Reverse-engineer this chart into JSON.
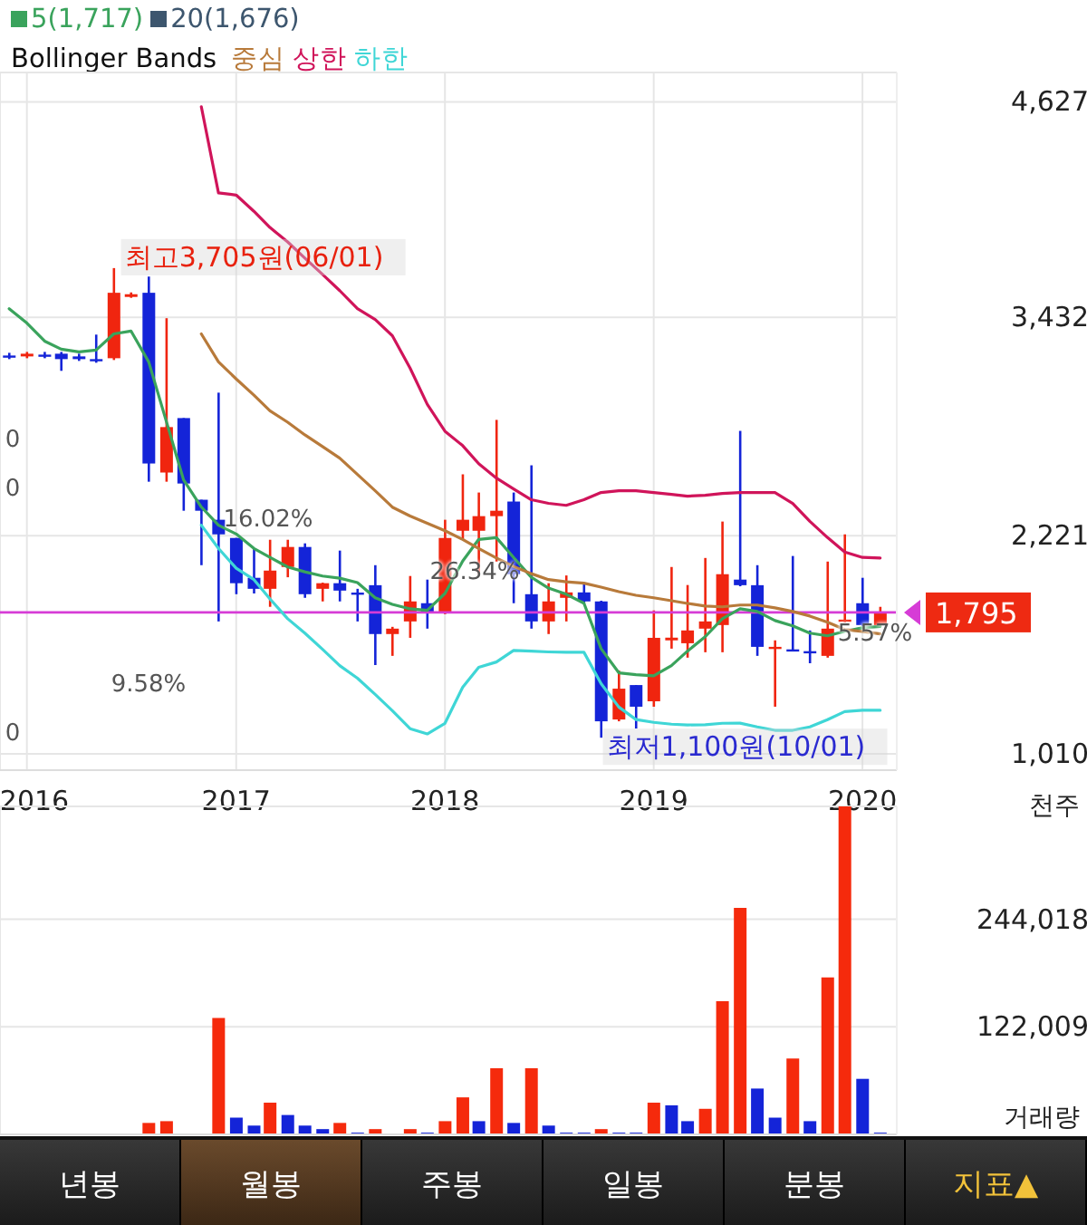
{
  "chart_data": [
    {
      "type": "candlestick",
      "x": [
        "2015-12",
        "2016-01",
        "2016-02",
        "2016-03",
        "2016-04",
        "2016-05",
        "2016-06",
        "2016-07",
        "2016-08",
        "2016-09",
        "2016-10",
        "2016-11",
        "2016-12",
        "2017-01",
        "2017-02",
        "2017-03",
        "2017-04",
        "2017-05",
        "2017-06",
        "2017-07",
        "2017-08",
        "2017-09",
        "2017-10",
        "2017-11",
        "2017-12",
        "2018-01",
        "2018-02",
        "2018-03",
        "2018-04",
        "2018-05",
        "2018-06",
        "2018-07",
        "2018-08",
        "2018-09",
        "2018-10",
        "2018-11",
        "2018-12",
        "2019-01",
        "2019-02",
        "2019-03",
        "2019-04",
        "2019-05",
        "2019-06",
        "2019-07",
        "2019-08",
        "2019-09",
        "2019-10",
        "2019-11",
        "2019-12",
        "2020-01",
        "2020-02"
      ],
      "xlim": [
        "2015-11-15",
        "2020-03-01"
      ],
      "xticks": [
        {
          "value": "2016-01",
          "label": "2016"
        },
        {
          "value": "2017-01",
          "label": "2017"
        },
        {
          "value": "2018-01",
          "label": "2018"
        },
        {
          "value": "2019-01",
          "label": "2019"
        },
        {
          "value": "2020-01",
          "label": "2020"
        }
      ],
      "ylim": [
        920,
        4790
      ],
      "yticks": [
        {
          "value": 1010,
          "label": "1,010"
        },
        {
          "value": 2221,
          "label": "2,221"
        },
        {
          "value": 3432,
          "label": "3,432"
        },
        {
          "value": 4627,
          "label": "4,627"
        }
      ],
      "ohlc": [
        [
          3220,
          3235,
          3200,
          3215
        ],
        [
          3215,
          3240,
          3205,
          3230
        ],
        [
          3225,
          3240,
          3205,
          3215
        ],
        [
          3230,
          3240,
          3135,
          3200
        ],
        [
          3215,
          3230,
          3190,
          3200
        ],
        [
          3200,
          3336,
          3180,
          3195
        ],
        [
          3205,
          3705,
          3195,
          3568
        ],
        [
          3545,
          3570,
          3540,
          3560
        ],
        [
          3568,
          3658,
          2520,
          2621
        ],
        [
          2571,
          3427,
          2520,
          2823
        ],
        [
          2873,
          2873,
          2359,
          2510
        ],
        [
          2420,
          2420,
          2057,
          2359
        ],
        [
          2309,
          3014,
          1745,
          2228
        ],
        [
          2208,
          2208,
          1896,
          1957
        ],
        [
          1987,
          2148,
          1900,
          1926
        ],
        [
          1926,
          2198,
          1826,
          2027
        ],
        [
          2047,
          2198,
          1990,
          2158
        ],
        [
          2158,
          2178,
          1876,
          1896
        ],
        [
          1926,
          1960,
          1856,
          1957
        ],
        [
          1957,
          2138,
          1856,
          1916
        ],
        [
          1905,
          1926,
          1745,
          1900
        ],
        [
          1946,
          2057,
          1503,
          1675
        ],
        [
          1675,
          1715,
          1554,
          1705
        ],
        [
          1745,
          1997,
          1654,
          1856
        ],
        [
          1846,
          1977,
          1705,
          1795
        ],
        [
          1795,
          2309,
          1785,
          2208
        ],
        [
          2248,
          2561,
          2198,
          2309
        ],
        [
          2248,
          2460,
          2007,
          2329
        ],
        [
          2329,
          2863,
          2077,
          2359
        ],
        [
          2410,
          2460,
          1846,
          2007
        ],
        [
          1896,
          2611,
          1705,
          1745
        ],
        [
          1745,
          1957,
          1675,
          1856
        ],
        [
          1876,
          2000,
          1745,
          1906
        ],
        [
          1906,
          1957,
          1846,
          1856
        ],
        [
          1856,
          1860,
          1100,
          1191
        ],
        [
          1201,
          1473,
          1191,
          1372
        ],
        [
          1392,
          1392,
          1151,
          1272
        ],
        [
          1302,
          1806,
          1272,
          1654
        ],
        [
          1640,
          2047,
          1594,
          1655
        ],
        [
          1624,
          1947,
          1544,
          1695
        ],
        [
          1705,
          2097,
          1574,
          1745
        ],
        [
          1725,
          2299,
          1574,
          2007
        ],
        [
          1977,
          2802,
          1940,
          1946
        ],
        [
          1946,
          2057,
          1554,
          1604
        ],
        [
          1594,
          1640,
          1272,
          1604
        ],
        [
          1590,
          2108,
          1580,
          1584
        ],
        [
          1580,
          1695,
          1513,
          1574
        ],
        [
          1554,
          2077,
          1544,
          1705
        ],
        [
          1750,
          2228,
          1740,
          1755
        ],
        [
          1846,
          1987,
          1720,
          1725
        ],
        [
          1725,
          1826,
          1720,
          1795
        ]
      ],
      "colors": [
        "#1424d8",
        "#f0250f",
        "#1424d8",
        "#1424d8",
        "#1424d8",
        "#1424d8",
        "#f0250f",
        "#f0250f",
        "#1424d8",
        "#f0250f",
        "#1424d8",
        "#1424d8",
        "#1424d8",
        "#1424d8",
        "#1424d8",
        "#f0250f",
        "#f0250f",
        "#1424d8",
        "#f0250f",
        "#1424d8",
        "#1424d8",
        "#1424d8",
        "#f0250f",
        "#f0250f",
        "#1424d8",
        "#f0250f",
        "#f0250f",
        "#f0250f",
        "#f0250f",
        "#1424d8",
        "#1424d8",
        "#f0250f",
        "#f0250f",
        "#1424d8",
        "#1424d8",
        "#f0250f",
        "#1424d8",
        "#f0250f",
        "#f0250f",
        "#f0250f",
        "#f0250f",
        "#f0250f",
        "#1424d8",
        "#1424d8",
        "#f0250f",
        "#1424d8",
        "#1424d8",
        "#f0250f",
        "#f0250f",
        "#1424d8",
        "#f0250f"
      ],
      "series": [
        {
          "name": "5(1,717)",
          "type": "line",
          "color": "#3aa35c",
          "values": [
            3480,
            3400,
            3300,
            3255,
            3240,
            3250,
            3340,
            3356,
            3185,
            2853,
            2530,
            2380,
            2279,
            2230,
            2150,
            2100,
            2047,
            2020,
            1997,
            1985,
            1960,
            1876,
            1840,
            1815,
            1806,
            1900,
            2080,
            2200,
            2210,
            2100,
            1990,
            1930,
            1896,
            1846,
            1594,
            1460,
            1450,
            1443,
            1500,
            1580,
            1660,
            1760,
            1815,
            1800,
            1750,
            1720,
            1680,
            1665,
            1690,
            1710,
            1717
          ]
        },
        {
          "name": "20(1,676)",
          "type": "line",
          "color": "#3d566e",
          "values": [
            null,
            null,
            null,
            null,
            null,
            null,
            null,
            null,
            null,
            null,
            null,
            null,
            null,
            null,
            null,
            null,
            null,
            null,
            null,
            null,
            null,
            null,
            null,
            null,
            null,
            null,
            null,
            null,
            null,
            null,
            null,
            null,
            null,
            null,
            null,
            null,
            null,
            null,
            null,
            null,
            null,
            null,
            null,
            null,
            null,
            null,
            null,
            null,
            null,
            null,
            null
          ]
        },
        {
          "name": "중심",
          "type": "line",
          "color": "#b87a3a",
          "values": [
            null,
            null,
            null,
            null,
            null,
            null,
            null,
            null,
            null,
            null,
            null,
            3340,
            3185,
            3090,
            3000,
            2913,
            2850,
            2780,
            2715,
            2651,
            2560,
            2470,
            2379,
            2330,
            2290,
            2248,
            2200,
            2150,
            2097,
            2050,
            2010,
            1977,
            1965,
            1957,
            1935,
            1910,
            1890,
            1876,
            1860,
            1845,
            1830,
            1826,
            1836,
            1836,
            1820,
            1800,
            1775,
            1740,
            1700,
            1690,
            1676
          ]
        },
        {
          "name": "상한",
          "type": "line",
          "color": "#d0145a",
          "values": [
            null,
            null,
            null,
            null,
            null,
            null,
            null,
            null,
            null,
            null,
            null,
            4600,
            4122,
            4110,
            4020,
            3930,
            3850,
            3760,
            3670,
            3580,
            3480,
            3420,
            3330,
            3150,
            2950,
            2800,
            2720,
            2620,
            2540,
            2480,
            2420,
            2400,
            2389,
            2420,
            2460,
            2470,
            2470,
            2460,
            2450,
            2440,
            2445,
            2455,
            2460,
            2460,
            2460,
            2400,
            2300,
            2210,
            2130,
            2100,
            2097
          ]
        },
        {
          "name": "하한",
          "type": "line",
          "color": "#3fd6d6",
          "values": [
            null,
            null,
            null,
            null,
            null,
            null,
            null,
            null,
            null,
            null,
            null,
            2279,
            2150,
            2040,
            1977,
            1870,
            1760,
            1680,
            1590,
            1500,
            1430,
            1340,
            1250,
            1150,
            1121,
            1180,
            1380,
            1490,
            1520,
            1584,
            1580,
            1576,
            1574,
            1574,
            1400,
            1270,
            1201,
            1185,
            1175,
            1171,
            1172,
            1180,
            1181,
            1160,
            1141,
            1141,
            1160,
            1200,
            1245,
            1252,
            1252
          ]
        }
      ],
      "legend": "top left",
      "legend_title": "Bollinger Bands",
      "grid": true,
      "ref_lines": [
        {
          "axis": "y",
          "value": 1795,
          "label": "1,795",
          "color": "#d63cd6"
        }
      ],
      "annotations": [
        {
          "text": "최고3,705원(06/01)",
          "x": "2016-06",
          "y": 3705
        },
        {
          "text": "최저1,100원(10/01)",
          "x": "2018-10",
          "y": 1100
        },
        "16.02%",
        "26.34%",
        "9.58%",
        "5.57%",
        "0",
        "0",
        "0"
      ]
    },
    {
      "type": "bar",
      "x": [
        "2016-08",
        "2016-09",
        "2016-10",
        "2016-11",
        "2016-12",
        "2017-01",
        "2017-02",
        "2017-03",
        "2017-04",
        "2017-05",
        "2017-06",
        "2017-07",
        "2017-08",
        "2017-09",
        "2017-10",
        "2017-11",
        "2017-12",
        "2018-01",
        "2018-02",
        "2018-03",
        "2018-04",
        "2018-05",
        "2018-06",
        "2018-07",
        "2018-08",
        "2018-09",
        "2018-10",
        "2018-11",
        "2018-12",
        "2019-01",
        "2019-02",
        "2019-03",
        "2019-04",
        "2019-05",
        "2019-06",
        "2019-07",
        "2019-08",
        "2019-09",
        "2019-10",
        "2019-11",
        "2019-12",
        "2020-01",
        "2020-02"
      ],
      "xlim": [
        "2015-11-15",
        "2020-03-01"
      ],
      "xticks": [
        {
          "value": "2016-01",
          "label": null
        },
        {
          "value": "2017-01",
          "label": null
        },
        {
          "value": "2018-01",
          "label": null
        },
        {
          "value": "2019-01",
          "label": null
        },
        {
          "value": "2020-01",
          "label": null
        }
      ],
      "values": [
        13000,
        15000,
        null,
        null,
        132000,
        19000,
        10000,
        36000,
        22000,
        10000,
        6000,
        13000,
        2000,
        6000,
        null,
        6000,
        2000,
        15000,
        42000,
        15000,
        75000,
        13000,
        75000,
        10000,
        2000,
        2000,
        6000,
        2000,
        2000,
        36000,
        33000,
        15000,
        29000,
        151000,
        257000,
        52000,
        19000,
        86000,
        15000,
        178000,
        372000,
        63000,
        2000
      ],
      "colors": [
        "#f52a0c",
        "#f52a0c",
        "#1424d8",
        "#1424d8",
        "#f52a0c",
        "#1424d8",
        "#1424d8",
        "#f52a0c",
        "#1424d8",
        "#1424d8",
        "#1424d8",
        "#f52a0c",
        "#1424d8",
        "#f52a0c",
        "#1424d8",
        "#f52a0c",
        "#1424d8",
        "#f52a0c",
        "#f52a0c",
        "#1424d8",
        "#f52a0c",
        "#1424d8",
        "#f52a0c",
        "#1424d8",
        "#1424d8",
        "#1424d8",
        "#f52a0c",
        "#1424d8",
        "#1424d8",
        "#f52a0c",
        "#1424d8",
        "#1424d8",
        "#f52a0c",
        "#f52a0c",
        "#f52a0c",
        "#1424d8",
        "#1424d8",
        "#f52a0c",
        "#1424d8",
        "#f52a0c",
        "#f52a0c",
        "#1424d8",
        "#1424d8"
      ],
      "ylim": [
        0,
        372000
      ],
      "yticks": [
        {
          "value": 122009,
          "label": "122,009"
        },
        {
          "value": 244018,
          "label": "244,018"
        }
      ],
      "ylabel": "천주",
      "title": "거래량",
      "grid": true,
      "tick_labels": "y"
    },
    {
      "type": "other",
      "annotations": [
        "년봉",
        "월봉",
        "주봉",
        "일봉",
        "분봉",
        "지표▲"
      ]
    }
  ]
}
